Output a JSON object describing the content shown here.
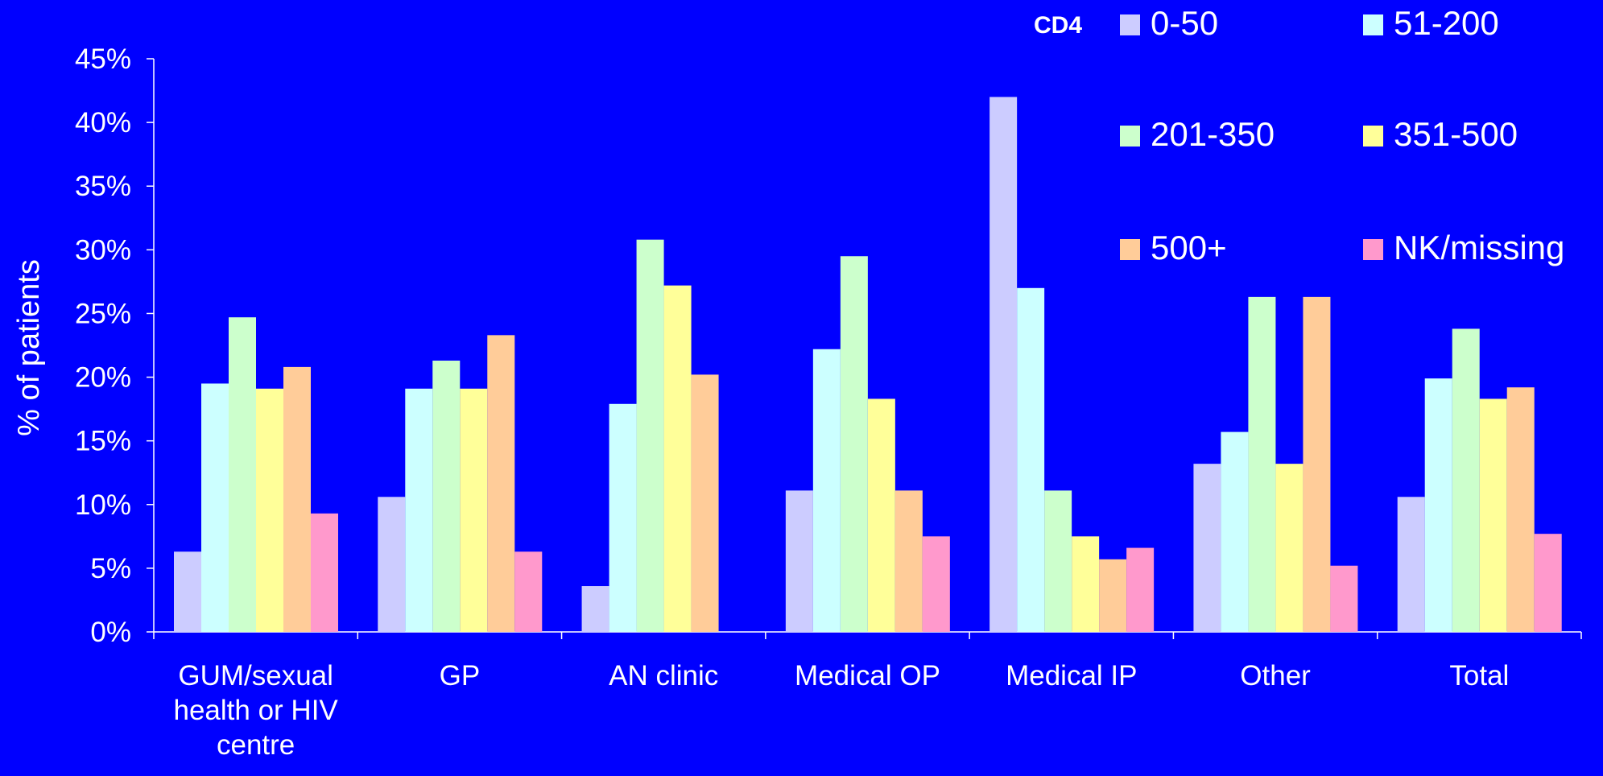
{
  "chart_data": {
    "type": "bar",
    "title": "",
    "xlabel": "",
    "ylabel": "% of patients",
    "ylim": [
      0,
      45
    ],
    "y_ticks": [
      "0%",
      "5%",
      "10%",
      "15%",
      "20%",
      "25%",
      "30%",
      "35%",
      "40%",
      "45%"
    ],
    "y_tick_values": [
      0,
      5,
      10,
      15,
      20,
      25,
      30,
      35,
      40,
      45
    ],
    "grid": false,
    "legend": {
      "title": "CD4",
      "position": "top-right"
    },
    "categories": [
      [
        "GUM/sexual",
        "health or HIV",
        "centre"
      ],
      [
        "GP"
      ],
      [
        "AN clinic"
      ],
      [
        "Medical OP"
      ],
      [
        "Medical IP"
      ],
      [
        "Other"
      ],
      [
        "Total"
      ]
    ],
    "series": [
      {
        "name": "0-50",
        "color": "#CCCCFF",
        "values": [
          6.3,
          10.6,
          3.6,
          11.1,
          42.0,
          13.2,
          10.6
        ]
      },
      {
        "name": "51-200",
        "color": "#CCFFFF",
        "values": [
          19.5,
          19.1,
          17.9,
          22.2,
          27.0,
          15.7,
          19.9
        ]
      },
      {
        "name": "201-350",
        "color": "#CCFFCC",
        "values": [
          24.7,
          21.3,
          30.8,
          29.5,
          11.1,
          26.3,
          23.8
        ]
      },
      {
        "name": "351-500",
        "color": "#FFFF99",
        "values": [
          19.1,
          19.1,
          27.2,
          18.3,
          7.5,
          13.2,
          18.3
        ]
      },
      {
        "name": "500+",
        "color": "#FFCC99",
        "values": [
          20.8,
          23.3,
          20.2,
          11.1,
          5.7,
          26.3,
          19.2
        ]
      },
      {
        "name": "NK/missing",
        "color": "#FF99CC",
        "values": [
          9.3,
          6.3,
          0,
          7.5,
          6.6,
          5.2,
          7.7
        ]
      }
    ]
  }
}
